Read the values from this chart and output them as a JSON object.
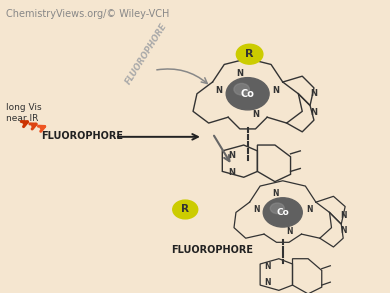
{
  "background_color": "#f5e6d0",
  "watermark": "ChemistryViews.org/© Wiley-VCH",
  "watermark_color": "#888888",
  "watermark_fontsize": 7,
  "bond_color": "#333333",
  "co_color": "#606060",
  "co_highlight": "#909090",
  "r_bg_color": "#cccc00",
  "fluorophore_text": "FLUOROPHORE",
  "fluorophore_rotated_color": "#aaaaaa",
  "long_vis_text": "long Vis\nnear IR",
  "lightning_colors": [
    "#cc3300",
    "#dd4411",
    "#ee5522"
  ],
  "arrow_color": "#555555"
}
